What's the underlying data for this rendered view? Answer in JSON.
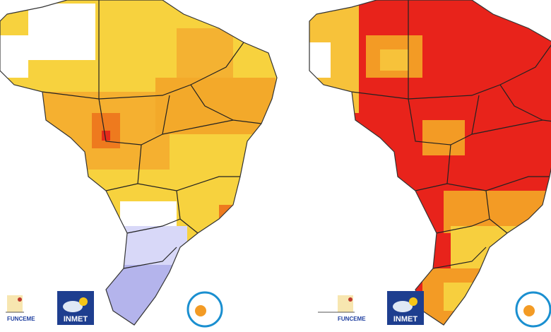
{
  "maps": [
    {
      "logos": [
        {
          "label": "FUNCEME"
        },
        {
          "label": "INMET"
        }
      ]
    },
    {
      "logos": [
        {
          "label": "FUNCEME"
        },
        {
          "label": "INMET"
        }
      ]
    }
  ]
}
